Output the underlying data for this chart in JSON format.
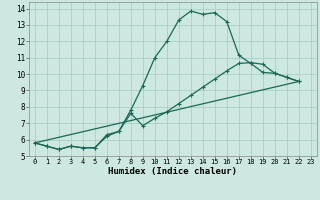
{
  "xlabel": "Humidex (Indice chaleur)",
  "bg_color": "#cce8e0",
  "grid_color": "#aad0c8",
  "line_color": "#1a6858",
  "xlim": [
    -0.5,
    23.5
  ],
  "ylim": [
    5,
    14.4
  ],
  "xticks": [
    0,
    1,
    2,
    3,
    4,
    5,
    6,
    7,
    8,
    9,
    10,
    11,
    12,
    13,
    14,
    15,
    16,
    17,
    18,
    19,
    20,
    21,
    22,
    23
  ],
  "yticks": [
    5,
    6,
    7,
    8,
    9,
    10,
    11,
    12,
    13,
    14
  ],
  "line1_x": [
    0,
    1,
    2,
    3,
    4,
    5,
    6,
    7,
    8,
    9,
    10,
    11,
    12,
    13,
    14,
    15,
    16,
    17,
    18,
    19,
    20,
    21,
    22,
    23
  ],
  "line1_y": [
    5.8,
    5.6,
    5.4,
    5.6,
    5.5,
    5.5,
    6.3,
    6.5,
    7.8,
    9.3,
    11.0,
    12.0,
    13.3,
    13.85,
    13.65,
    13.75,
    13.2,
    11.15,
    10.65,
    10.1,
    10.05,
    9.8,
    9.55,
    null
  ],
  "line2_x": [
    0,
    1,
    2,
    3,
    4,
    5,
    6,
    7,
    8,
    9,
    10,
    11,
    12,
    13,
    14,
    15,
    16,
    17,
    18,
    19,
    20,
    21,
    22,
    23
  ],
  "line2_y": [
    5.8,
    5.6,
    5.4,
    5.6,
    5.5,
    5.5,
    6.2,
    6.5,
    7.6,
    6.85,
    7.3,
    7.7,
    8.2,
    8.7,
    9.2,
    9.7,
    10.2,
    10.65,
    10.7,
    10.6,
    10.05,
    9.8,
    9.55,
    null
  ],
  "line3_x": [
    0,
    22
  ],
  "line3_y": [
    5.8,
    9.55
  ]
}
